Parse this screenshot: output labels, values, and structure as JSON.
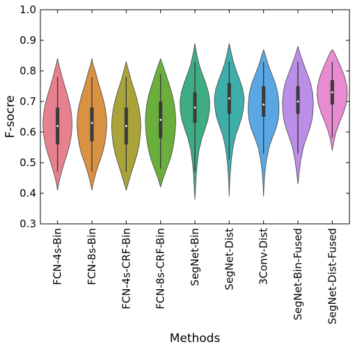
{
  "chart_data": {
    "type": "violin",
    "title": "",
    "xlabel": "Methods",
    "ylabel": "F-socre",
    "ylim": [
      0.3,
      1.0
    ],
    "yticks": [
      "0.3",
      "0.4",
      "0.5",
      "0.6",
      "0.7",
      "0.8",
      "0.9",
      "1.0"
    ],
    "grid": false,
    "legend": "none",
    "categories": [
      "FCN-4s-Bin",
      "FCN-8s-Bin",
      "FCN-4s-CRF-Bin",
      "FCN-8s-CRF-Bin",
      "SegNet-Bin",
      "SegNet-Dist",
      "3Conv-Dist",
      "SegNet-Bin-Fused",
      "SegNet-Dist-Fused"
    ],
    "colors": [
      "#e8818f",
      "#d99142",
      "#a9a33a",
      "#6aaf3c",
      "#3fad84",
      "#3eaeaa",
      "#5aa7e3",
      "#bb8ee8",
      "#e98bd3"
    ],
    "violins": [
      {
        "min": 0.41,
        "q1": 0.56,
        "median": 0.62,
        "q3": 0.68,
        "max": 0.84,
        "whisker_low": 0.47,
        "whisker_high": 0.78,
        "profile": [
          [
            0.41,
            0.0
          ],
          [
            0.44,
            0.012
          ],
          [
            0.47,
            0.03
          ],
          [
            0.5,
            0.05
          ],
          [
            0.53,
            0.072
          ],
          [
            0.56,
            0.09
          ],
          [
            0.59,
            0.102
          ],
          [
            0.62,
            0.108
          ],
          [
            0.65,
            0.105
          ],
          [
            0.68,
            0.096
          ],
          [
            0.71,
            0.08
          ],
          [
            0.74,
            0.06
          ],
          [
            0.77,
            0.04
          ],
          [
            0.8,
            0.022
          ],
          [
            0.82,
            0.01
          ],
          [
            0.84,
            0.0
          ]
        ]
      },
      {
        "min": 0.41,
        "q1": 0.57,
        "median": 0.63,
        "q3": 0.68,
        "max": 0.84,
        "whisker_low": 0.47,
        "whisker_high": 0.78,
        "profile": [
          [
            0.41,
            0.0
          ],
          [
            0.44,
            0.014
          ],
          [
            0.47,
            0.032
          ],
          [
            0.5,
            0.054
          ],
          [
            0.53,
            0.078
          ],
          [
            0.56,
            0.094
          ],
          [
            0.59,
            0.104
          ],
          [
            0.62,
            0.11
          ],
          [
            0.65,
            0.108
          ],
          [
            0.68,
            0.098
          ],
          [
            0.71,
            0.082
          ],
          [
            0.74,
            0.062
          ],
          [
            0.77,
            0.042
          ],
          [
            0.8,
            0.024
          ],
          [
            0.82,
            0.01
          ],
          [
            0.84,
            0.0
          ]
        ]
      },
      {
        "min": 0.41,
        "q1": 0.56,
        "median": 0.62,
        "q3": 0.68,
        "max": 0.83,
        "whisker_low": 0.47,
        "whisker_high": 0.78,
        "profile": [
          [
            0.41,
            0.0
          ],
          [
            0.44,
            0.02
          ],
          [
            0.47,
            0.04
          ],
          [
            0.5,
            0.062
          ],
          [
            0.53,
            0.082
          ],
          [
            0.56,
            0.096
          ],
          [
            0.59,
            0.104
          ],
          [
            0.62,
            0.108
          ],
          [
            0.65,
            0.104
          ],
          [
            0.68,
            0.094
          ],
          [
            0.71,
            0.078
          ],
          [
            0.74,
            0.058
          ],
          [
            0.77,
            0.036
          ],
          [
            0.8,
            0.018
          ],
          [
            0.83,
            0.0
          ]
        ]
      },
      {
        "min": 0.42,
        "q1": 0.58,
        "median": 0.64,
        "q3": 0.7,
        "max": 0.84,
        "whisker_low": 0.48,
        "whisker_high": 0.79,
        "profile": [
          [
            0.42,
            0.0
          ],
          [
            0.45,
            0.02
          ],
          [
            0.48,
            0.045
          ],
          [
            0.51,
            0.07
          ],
          [
            0.54,
            0.088
          ],
          [
            0.57,
            0.1
          ],
          [
            0.6,
            0.108
          ],
          [
            0.63,
            0.112
          ],
          [
            0.66,
            0.11
          ],
          [
            0.69,
            0.102
          ],
          [
            0.72,
            0.088
          ],
          [
            0.75,
            0.068
          ],
          [
            0.78,
            0.046
          ],
          [
            0.81,
            0.024
          ],
          [
            0.84,
            0.0
          ]
        ]
      },
      {
        "min": 0.38,
        "q1": 0.63,
        "median": 0.68,
        "q3": 0.73,
        "max": 0.89,
        "whisker_low": 0.47,
        "whisker_high": 0.83,
        "profile": [
          [
            0.38,
            0.0
          ],
          [
            0.42,
            0.005
          ],
          [
            0.46,
            0.01
          ],
          [
            0.5,
            0.018
          ],
          [
            0.54,
            0.03
          ],
          [
            0.58,
            0.052
          ],
          [
            0.61,
            0.075
          ],
          [
            0.64,
            0.096
          ],
          [
            0.67,
            0.108
          ],
          [
            0.7,
            0.11
          ],
          [
            0.73,
            0.1
          ],
          [
            0.76,
            0.08
          ],
          [
            0.79,
            0.055
          ],
          [
            0.82,
            0.032
          ],
          [
            0.85,
            0.016
          ],
          [
            0.87,
            0.007
          ],
          [
            0.89,
            0.0
          ]
        ]
      },
      {
        "min": 0.39,
        "q1": 0.66,
        "median": 0.71,
        "q3": 0.76,
        "max": 0.89,
        "whisker_low": 0.51,
        "whisker_high": 0.83,
        "profile": [
          [
            0.39,
            0.0
          ],
          [
            0.43,
            0.003
          ],
          [
            0.47,
            0.008
          ],
          [
            0.51,
            0.016
          ],
          [
            0.55,
            0.028
          ],
          [
            0.59,
            0.048
          ],
          [
            0.62,
            0.072
          ],
          [
            0.65,
            0.094
          ],
          [
            0.68,
            0.106
          ],
          [
            0.71,
            0.11
          ],
          [
            0.74,
            0.1
          ],
          [
            0.77,
            0.078
          ],
          [
            0.8,
            0.052
          ],
          [
            0.83,
            0.03
          ],
          [
            0.86,
            0.014
          ],
          [
            0.89,
            0.0
          ]
        ]
      },
      {
        "min": 0.39,
        "q1": 0.65,
        "median": 0.69,
        "q3": 0.75,
        "max": 0.87,
        "whisker_low": 0.53,
        "whisker_high": 0.83,
        "profile": [
          [
            0.39,
            0.0
          ],
          [
            0.43,
            0.004
          ],
          [
            0.47,
            0.01
          ],
          [
            0.51,
            0.022
          ],
          [
            0.55,
            0.04
          ],
          [
            0.58,
            0.064
          ],
          [
            0.61,
            0.09
          ],
          [
            0.64,
            0.108
          ],
          [
            0.67,
            0.114
          ],
          [
            0.7,
            0.112
          ],
          [
            0.73,
            0.104
          ],
          [
            0.76,
            0.086
          ],
          [
            0.79,
            0.06
          ],
          [
            0.82,
            0.034
          ],
          [
            0.85,
            0.014
          ],
          [
            0.87,
            0.0
          ]
        ]
      },
      {
        "min": 0.43,
        "q1": 0.66,
        "median": 0.7,
        "q3": 0.75,
        "max": 0.88,
        "whisker_low": 0.53,
        "whisker_high": 0.83,
        "profile": [
          [
            0.43,
            0.0
          ],
          [
            0.47,
            0.01
          ],
          [
            0.51,
            0.022
          ],
          [
            0.55,
            0.04
          ],
          [
            0.58,
            0.062
          ],
          [
            0.61,
            0.086
          ],
          [
            0.64,
            0.104
          ],
          [
            0.67,
            0.112
          ],
          [
            0.7,
            0.114
          ],
          [
            0.73,
            0.108
          ],
          [
            0.76,
            0.094
          ],
          [
            0.79,
            0.07
          ],
          [
            0.82,
            0.044
          ],
          [
            0.85,
            0.02
          ],
          [
            0.88,
            0.0
          ]
        ]
      },
      {
        "min": 0.54,
        "q1": 0.69,
        "median": 0.73,
        "q3": 0.77,
        "max": 0.87,
        "whisker_low": 0.58,
        "whisker_high": 0.83,
        "profile": [
          [
            0.54,
            0.0
          ],
          [
            0.57,
            0.012
          ],
          [
            0.6,
            0.028
          ],
          [
            0.63,
            0.052
          ],
          [
            0.66,
            0.08
          ],
          [
            0.69,
            0.102
          ],
          [
            0.72,
            0.112
          ],
          [
            0.75,
            0.108
          ],
          [
            0.78,
            0.092
          ],
          [
            0.81,
            0.066
          ],
          [
            0.84,
            0.036
          ],
          [
            0.86,
            0.016
          ],
          [
            0.87,
            0.0
          ]
        ]
      }
    ]
  }
}
